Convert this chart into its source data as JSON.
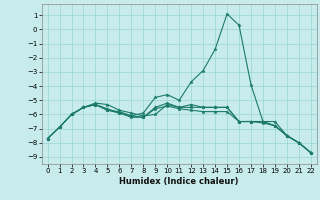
{
  "xlabel": "Humidex (Indice chaleur)",
  "ylabel": "",
  "bg_color": "#c8ecec",
  "grid_color": "#a0d8d8",
  "line_color": "#1a7a6a",
  "x_ticks": [
    0,
    1,
    2,
    3,
    4,
    5,
    6,
    7,
    8,
    9,
    10,
    11,
    12,
    13,
    14,
    15,
    16,
    17,
    18,
    19,
    20,
    21,
    22
  ],
  "y_ticks": [
    1,
    0,
    -1,
    -2,
    -3,
    -4,
    -5,
    -6,
    -7,
    -8,
    -9
  ],
  "xlim": [
    -0.5,
    22.5
  ],
  "ylim": [
    -9.5,
    1.8
  ],
  "lines": [
    {
      "x": [
        0,
        1,
        2,
        3,
        4,
        5,
        6,
        7,
        8,
        9,
        10,
        11,
        12,
        13,
        14,
        15,
        16,
        17,
        18,
        19,
        20,
        21,
        22
      ],
      "y": [
        -7.7,
        -6.9,
        -6.0,
        -5.5,
        -5.3,
        -5.6,
        -5.9,
        -6.1,
        -5.9,
        -4.8,
        -4.6,
        -5.0,
        -3.7,
        -2.9,
        -1.4,
        1.1,
        0.3,
        -3.9,
        -6.5,
        -6.5,
        -7.5,
        -8.0,
        -8.7
      ]
    },
    {
      "x": [
        0,
        1,
        2,
        3,
        4,
        5,
        6,
        7,
        8,
        9,
        10,
        11,
        12,
        13,
        14,
        15,
        16,
        17,
        18,
        19,
        20,
        21,
        22
      ],
      "y": [
        -7.7,
        -6.9,
        -6.0,
        -5.5,
        -5.3,
        -5.7,
        -5.9,
        -6.2,
        -6.2,
        -5.5,
        -5.2,
        -5.5,
        -5.5,
        -5.5,
        -5.5,
        -5.5,
        -6.5,
        -6.5,
        -6.5,
        -6.8,
        -7.5,
        -8.0,
        -8.7
      ]
    },
    {
      "x": [
        0,
        1,
        2,
        3,
        4,
        5,
        6,
        7,
        8,
        9,
        10,
        11,
        12,
        13,
        14,
        15,
        16,
        17,
        18,
        19,
        20,
        21,
        22
      ],
      "y": [
        -7.7,
        -6.9,
        -6.0,
        -5.5,
        -5.3,
        -5.7,
        -5.8,
        -6.1,
        -6.2,
        -5.6,
        -5.4,
        -5.6,
        -5.7,
        -5.8,
        -5.8,
        -5.8,
        -6.5,
        -6.5,
        -6.6,
        -6.8,
        -7.5,
        -8.0,
        -8.7
      ]
    },
    {
      "x": [
        2,
        3,
        4,
        5,
        6,
        7,
        8,
        9,
        10,
        11,
        12,
        13,
        14,
        15,
        16,
        17,
        18,
        19,
        20,
        21,
        22
      ],
      "y": [
        -6.0,
        -5.5,
        -5.2,
        -5.3,
        -5.7,
        -5.9,
        -6.1,
        -6.0,
        -5.3,
        -5.5,
        -5.3,
        -5.5,
        -5.5,
        -5.5,
        -6.5,
        -6.5,
        -6.5,
        -6.8,
        -7.5,
        -8.0,
        -8.7
      ]
    }
  ],
  "tick_fontsize": 5.0,
  "xlabel_fontsize": 6.0,
  "marker_size": 2.5,
  "linewidth": 0.8
}
